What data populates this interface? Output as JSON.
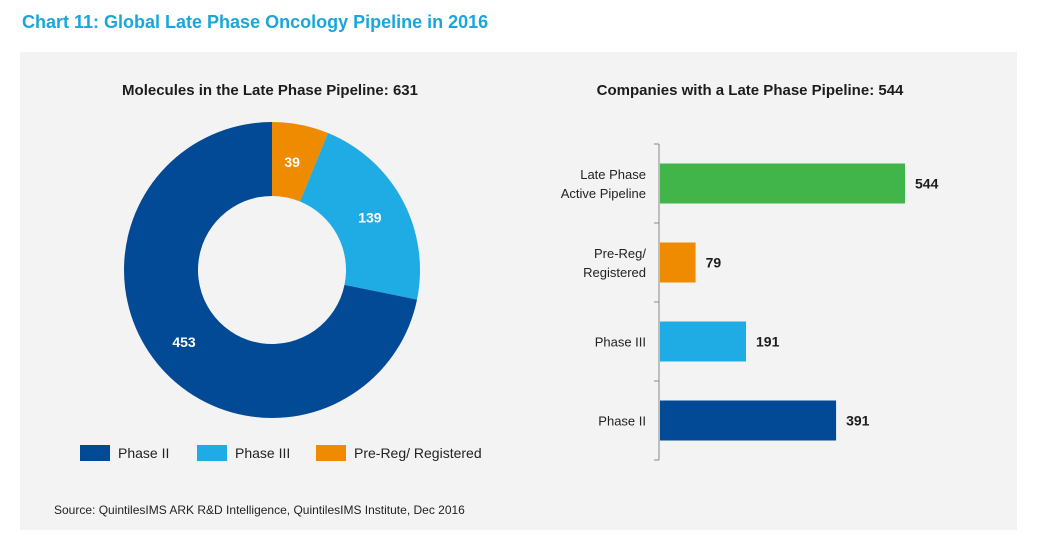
{
  "page_title": "Chart 11: Global Late Phase Oncology Pipeline in 2016",
  "source": "Source: QuintilesIMS ARK R&D Intelligence, QuintilesIMS Institute, Dec 2016",
  "colors": {
    "phase_ii": "#024a95",
    "phase_iii": "#1fabe3",
    "pre_reg": "#ee8b00",
    "active": "#42b54a",
    "title_blue": "#1aa6d9",
    "panel_bg": "#f4f3f4"
  },
  "chart_data": [
    {
      "type": "pie",
      "title": "Molecules in the Late Phase Pipeline: 631",
      "donut": true,
      "slices": [
        {
          "label": "Pre-Reg/ Registered",
          "value": 39,
          "color": "#ee8b00"
        },
        {
          "label": "Phase III",
          "value": 139,
          "color": "#1fabe3"
        },
        {
          "label": "Phase II",
          "value": 453,
          "color": "#024a95"
        }
      ],
      "legend": [
        {
          "label": "Phase II",
          "color": "#024a95"
        },
        {
          "label": "Phase III",
          "color": "#1fabe3"
        },
        {
          "label": "Pre-Reg/ Registered",
          "color": "#ee8b00"
        }
      ],
      "legend_position": "bottom"
    },
    {
      "type": "bar",
      "orientation": "horizontal",
      "title": "Companies with a Late Phase Pipeline: 544",
      "categories": [
        [
          "Late Phase",
          "Active Pipeline"
        ],
        [
          "Pre-Reg/",
          "Registered"
        ],
        [
          "Phase III"
        ],
        [
          "Phase II"
        ]
      ],
      "values": [
        544,
        79,
        191,
        391
      ],
      "colors": [
        "#42b54a",
        "#ee8b00",
        "#1fabe3",
        "#024a95"
      ],
      "xlim": [
        0,
        600
      ],
      "grid": false
    }
  ]
}
